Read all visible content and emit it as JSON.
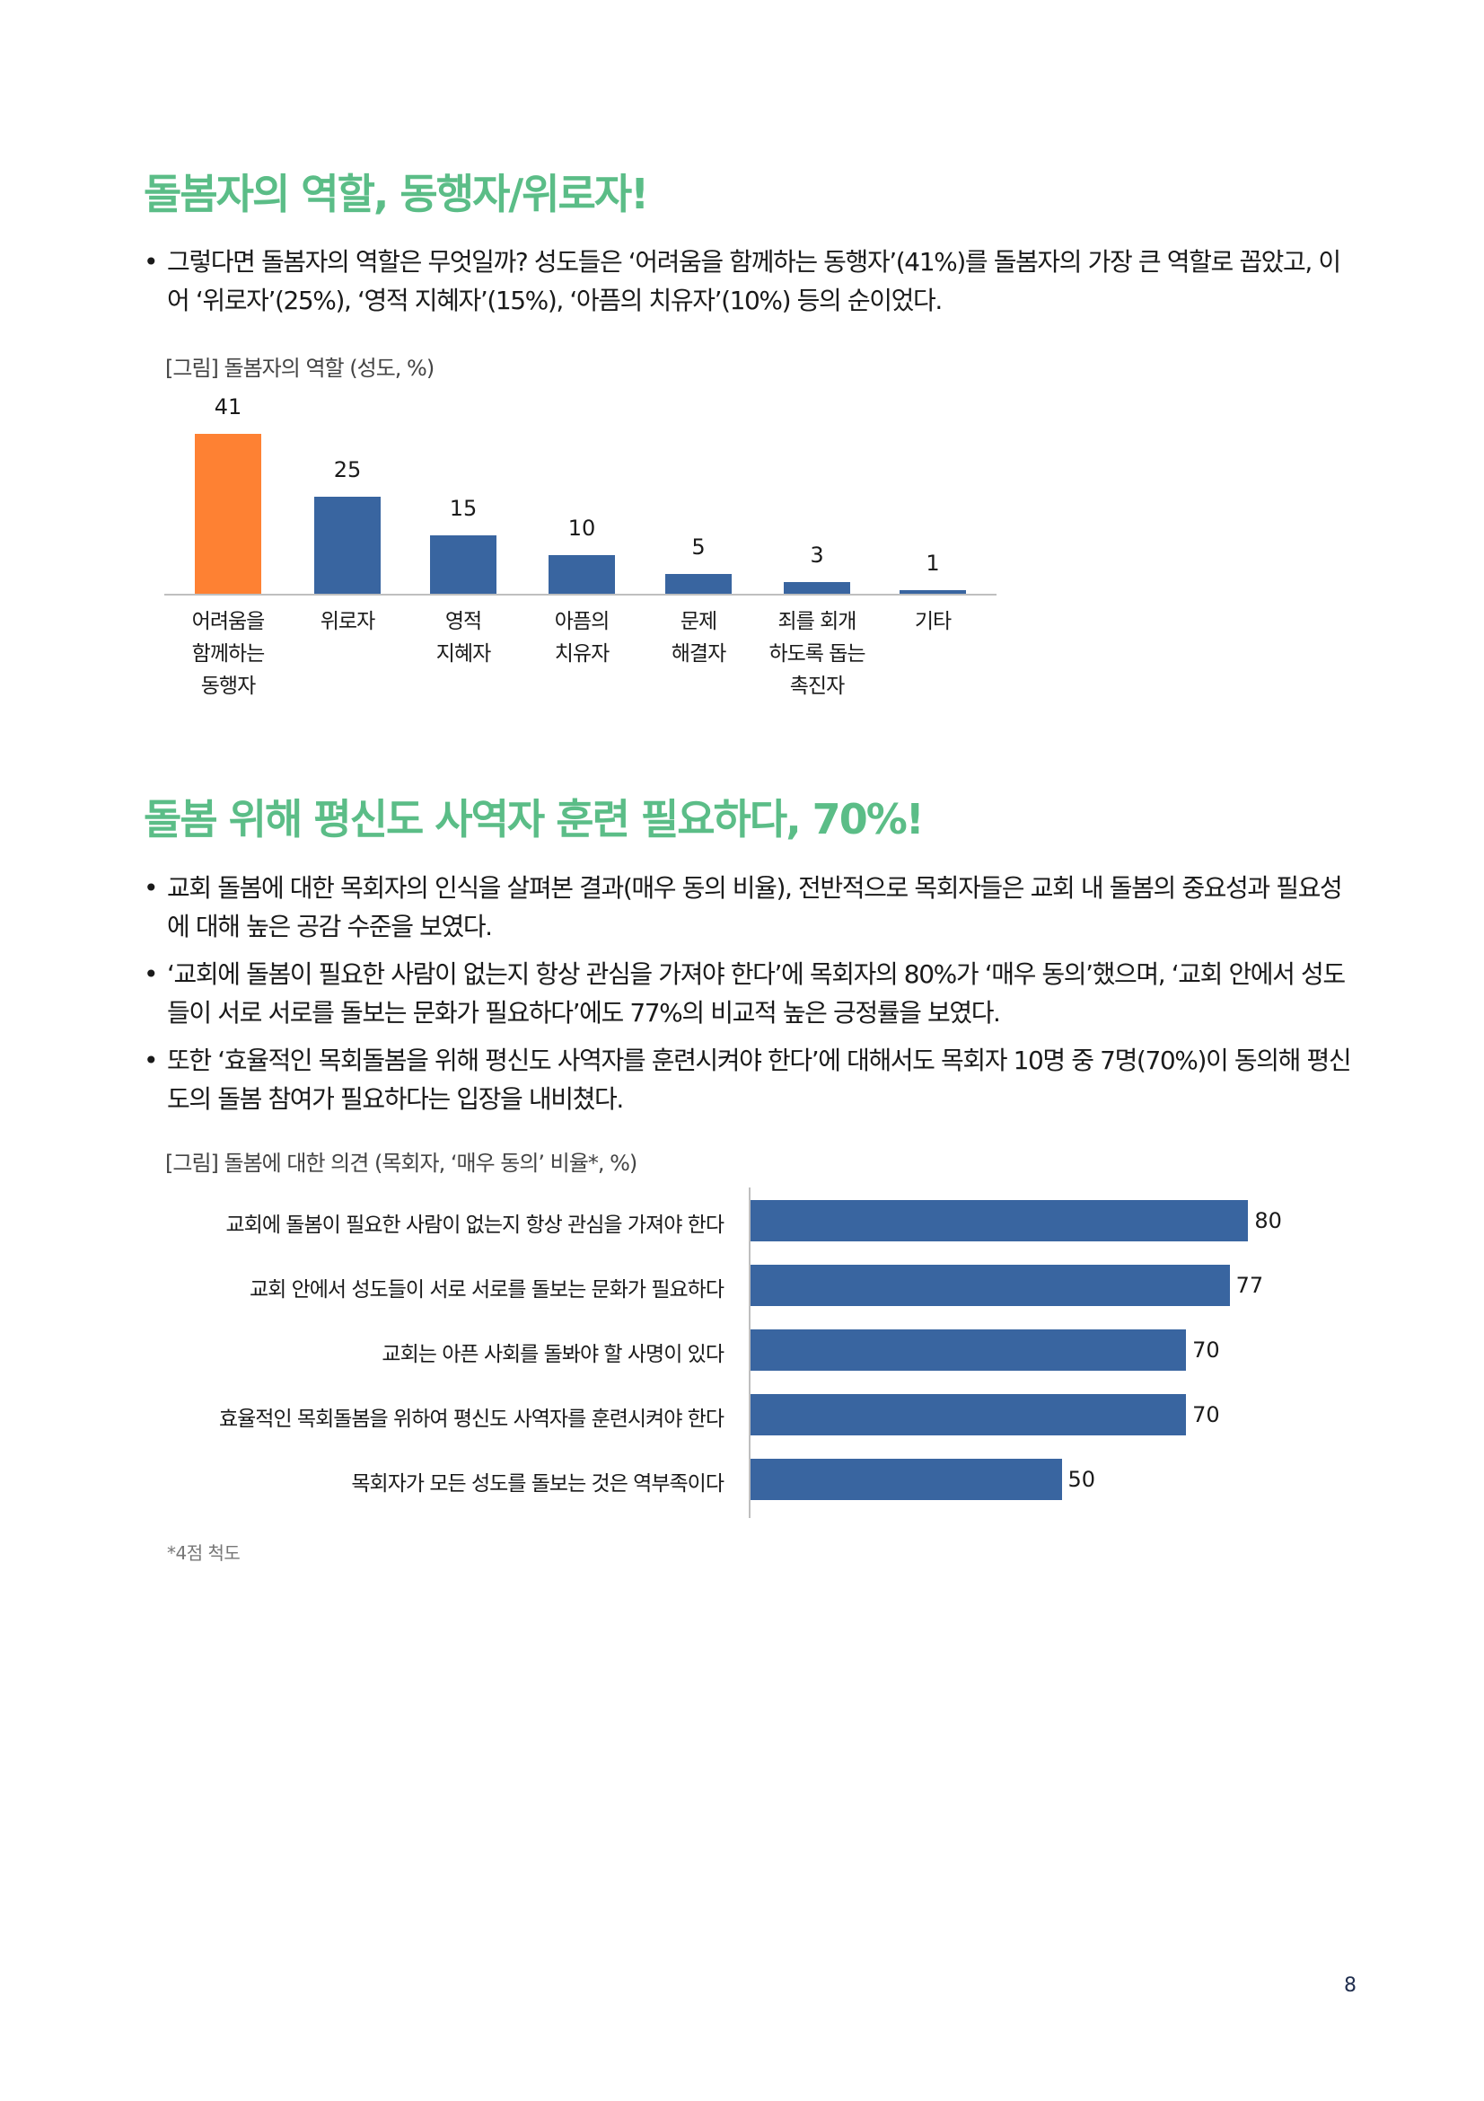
{
  "section1": {
    "title": "돌봄자의 역할, 동행자/위로자!",
    "bullets": [
      "그렇다면 돌봄자의 역할은 무엇일까? 성도들은 ‘어려움을 함께하는 동행자’(41%)를 돌봄자의 가장 큰 역할로 꼽았고, 이어 ‘위로자’(25%), ‘영적 지혜자’(15%), ‘아픔의 치유자’(10%) 등의 순이었다."
    ],
    "figure_caption": "[그림] 돌봄자의 역할 (성도, %)"
  },
  "section2": {
    "title": "돌봄 위해 평신도 사역자 훈련 필요하다, 70%!",
    "bullets": [
      "교회 돌봄에 대한 목회자의 인식을 살펴본 결과(매우 동의 비율), 전반적으로 목회자들은 교회 내 돌봄의 중요성과 필요성에 대해 높은 공감 수준을 보였다.",
      "‘교회에 돌봄이 필요한 사람이 없는지 항상 관심을 가져야 한다’에 목회자의 80%가 ‘매우 동의’했으며, ‘교회 안에서 성도들이 서로 서로를 돌보는 문화가 필요하다’에도 77%의 비교적 높은 긍정률을 보였다.",
      "또한 ‘효율적인 목회돌봄을 위해 평신도 사역자를 훈련시켜야 한다’에 대해서도 목회자 10명 중 7명(70%)이 동의해 평신도의 돌봄 참여가 필요하다는 입장을 내비쳤다."
    ],
    "figure_caption": "[그림] 돌봄에 대한 의견 (목회자, ‘매우 동의’ 비율*, %)",
    "footnote": "*4점 척도"
  },
  "page_number": "8",
  "colors": {
    "heading_green": "#5bbd87",
    "highlight_orange": "#fe8133",
    "bar_blue": "#3965a0",
    "axis_gray": "#bfbfbf"
  },
  "chart_data": [
    {
      "type": "bar",
      "title": "[그림] 돌봄자의 역할 (성도, %)",
      "categories": [
        "어려움을\n함께하는\n동행자",
        "위로자",
        "영적\n지혜자",
        "아픔의\n치유자",
        "문제\n해결자",
        "죄를 회개\n하도록 돕는\n촉진자",
        "기타"
      ],
      "values": [
        41,
        25,
        15,
        10,
        5,
        3,
        1
      ],
      "value_labels": [
        "41",
        "25",
        "15",
        "10",
        "5",
        "3",
        "1"
      ],
      "bar_colors": [
        "#fe8133",
        "#3965a0",
        "#3965a0",
        "#3965a0",
        "#3965a0",
        "#3965a0",
        "#3965a0"
      ],
      "xlabel": "",
      "ylabel": "",
      "ylim": [
        0,
        45
      ],
      "grid": false,
      "legend": "none",
      "data_labels": true
    },
    {
      "type": "bar",
      "orientation": "horizontal",
      "title": "[그림] 돌봄에 대한 의견 (목회자, ‘매우 동의’ 비율*, %)",
      "categories": [
        "교회에 돌봄이 필요한 사람이 없는지 항상 관심을 가져야 한다",
        "교회 안에서 성도들이 서로 서로를 돌보는 문화가 필요하다",
        "교회는 아픈 사회를 돌봐야 할 사명이 있다",
        "효율적인 목회돌봄을 위하여 평신도 사역자를 훈련시켜야 한다",
        "목회자가 모든 성도를 돌보는 것은 역부족이다"
      ],
      "values": [
        80,
        77,
        70,
        70,
        50
      ],
      "value_labels": [
        "80",
        "77",
        "70",
        "70",
        "50"
      ],
      "bar_color": "#3965a0",
      "xlabel": "",
      "ylabel": "",
      "xlim": [
        0,
        90
      ],
      "grid": false,
      "legend": "none",
      "data_labels": true,
      "footnote": "*4점 척도"
    }
  ]
}
